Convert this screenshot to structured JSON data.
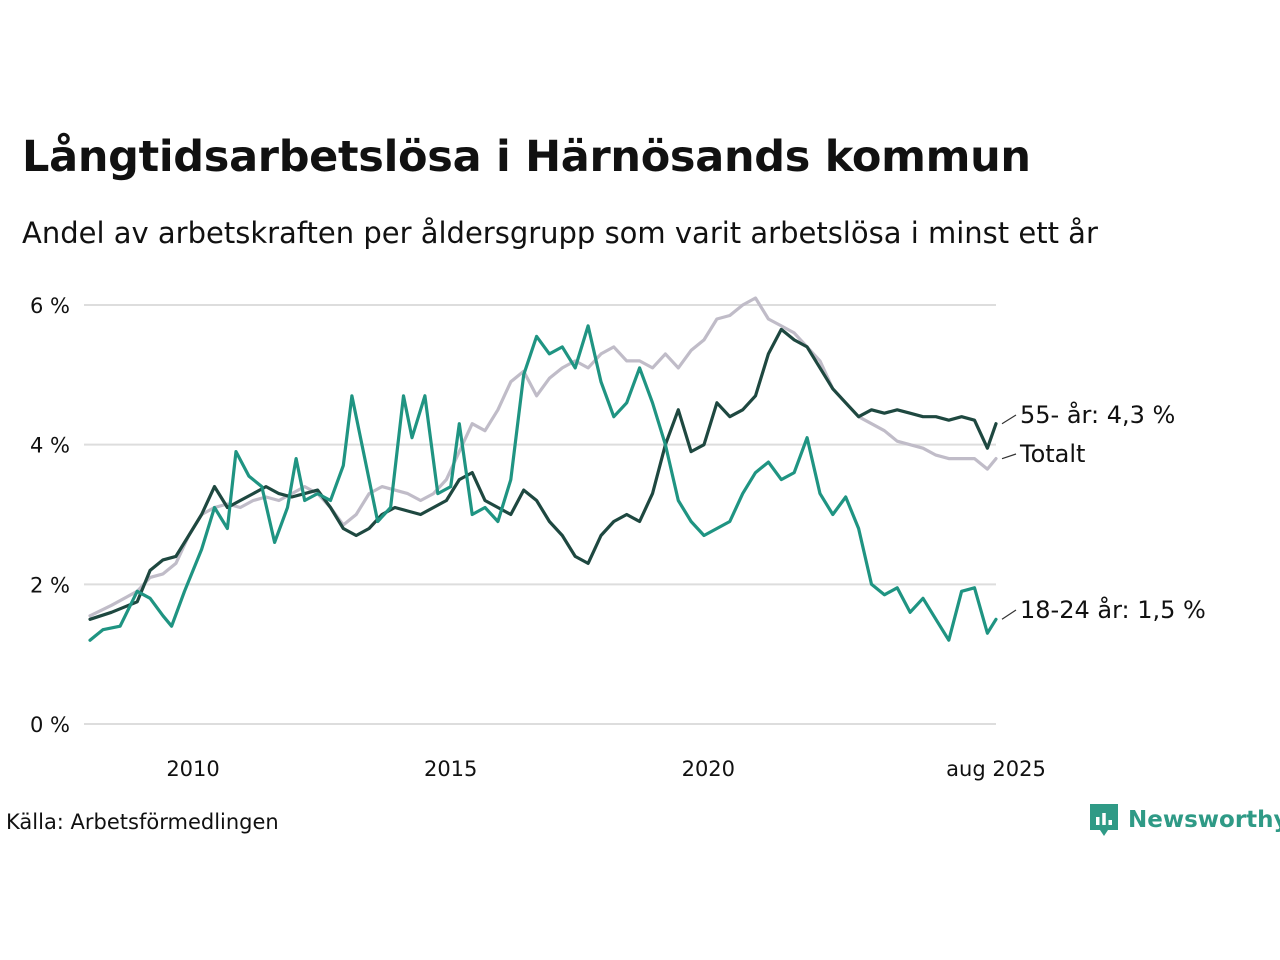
{
  "header": {
    "title": "Långtidsarbetslösa i Härnösands kommun",
    "subtitle": "Andel av arbetskraften per åldersgrupp som varit arbetslösa i minst ett år"
  },
  "footer": {
    "source": "Källa: Arbetsförmedlingen",
    "logo_text": "Newsworthy"
  },
  "colors": {
    "totalt": "#c0bcc8",
    "age_55": "#1e4840",
    "age_18_24": "#1f9482",
    "grid": "#dddddd",
    "brand": "#2f9a86"
  },
  "chart_data": {
    "type": "line",
    "title": "Långtidsarbetslösa i Härnösands kommun",
    "subtitle": "Andel av arbetskraften per åldersgrupp som varit arbetslösa i minst ett år",
    "x_range": [
      "2008-01",
      "2025-08"
    ],
    "x_ticks": [
      {
        "date": "2010-01",
        "label": "2010"
      },
      {
        "date": "2015-01",
        "label": "2015"
      },
      {
        "date": "2020-01",
        "label": "2020"
      },
      {
        "date": "2025-08",
        "label": "aug 2025"
      }
    ],
    "ylim": [
      0,
      6
    ],
    "y_ticks": [
      {
        "value": 0,
        "label": "0 %"
      },
      {
        "value": 2,
        "label": "2 %"
      },
      {
        "value": 4,
        "label": "4 %"
      },
      {
        "value": 6,
        "label": "6 %"
      }
    ],
    "grid": "horizontal",
    "series": [
      {
        "name": "Totalt",
        "end_label": "Totalt",
        "color": "#c0bcc8",
        "points": [
          [
            "2008-01",
            1.55
          ],
          [
            "2008-06",
            1.7
          ],
          [
            "2008-12",
            1.9
          ],
          [
            "2009-03",
            2.1
          ],
          [
            "2009-06",
            2.15
          ],
          [
            "2009-09",
            2.3
          ],
          [
            "2009-12",
            2.7
          ],
          [
            "2010-03",
            3.0
          ],
          [
            "2010-06",
            3.1
          ],
          [
            "2010-09",
            3.15
          ],
          [
            "2010-12",
            3.1
          ],
          [
            "2011-03",
            3.2
          ],
          [
            "2011-06",
            3.25
          ],
          [
            "2011-09",
            3.2
          ],
          [
            "2011-12",
            3.3
          ],
          [
            "2012-03",
            3.4
          ],
          [
            "2012-06",
            3.3
          ],
          [
            "2012-09",
            3.1
          ],
          [
            "2012-12",
            2.85
          ],
          [
            "2013-03",
            3.0
          ],
          [
            "2013-06",
            3.3
          ],
          [
            "2013-09",
            3.4
          ],
          [
            "2013-12",
            3.35
          ],
          [
            "2014-03",
            3.3
          ],
          [
            "2014-06",
            3.2
          ],
          [
            "2014-09",
            3.3
          ],
          [
            "2014-12",
            3.5
          ],
          [
            "2015-03",
            3.9
          ],
          [
            "2015-06",
            4.3
          ],
          [
            "2015-09",
            4.2
          ],
          [
            "2015-12",
            4.5
          ],
          [
            "2016-03",
            4.9
          ],
          [
            "2016-06",
            5.05
          ],
          [
            "2016-09",
            4.7
          ],
          [
            "2016-12",
            4.95
          ],
          [
            "2017-03",
            5.1
          ],
          [
            "2017-06",
            5.2
          ],
          [
            "2017-09",
            5.1
          ],
          [
            "2017-12",
            5.3
          ],
          [
            "2018-03",
            5.4
          ],
          [
            "2018-06",
            5.2
          ],
          [
            "2018-09",
            5.2
          ],
          [
            "2018-12",
            5.1
          ],
          [
            "2019-03",
            5.3
          ],
          [
            "2019-06",
            5.1
          ],
          [
            "2019-09",
            5.35
          ],
          [
            "2019-12",
            5.5
          ],
          [
            "2020-03",
            5.8
          ],
          [
            "2020-06",
            5.85
          ],
          [
            "2020-09",
            6.0
          ],
          [
            "2020-12",
            6.1
          ],
          [
            "2021-03",
            5.8
          ],
          [
            "2021-06",
            5.7
          ],
          [
            "2021-09",
            5.6
          ],
          [
            "2021-12",
            5.4
          ],
          [
            "2022-03",
            5.2
          ],
          [
            "2022-06",
            4.8
          ],
          [
            "2022-09",
            4.6
          ],
          [
            "2022-12",
            4.4
          ],
          [
            "2023-03",
            4.3
          ],
          [
            "2023-06",
            4.2
          ],
          [
            "2023-09",
            4.05
          ],
          [
            "2023-12",
            4.0
          ],
          [
            "2024-03",
            3.95
          ],
          [
            "2024-06",
            3.85
          ],
          [
            "2024-09",
            3.8
          ],
          [
            "2024-12",
            3.8
          ],
          [
            "2025-03",
            3.8
          ],
          [
            "2025-06",
            3.65
          ],
          [
            "2025-08",
            3.8
          ]
        ]
      },
      {
        "name": "55- år",
        "end_label": "55- år: 4,3 %",
        "color": "#1e4840",
        "points": [
          [
            "2008-01",
            1.5
          ],
          [
            "2008-06",
            1.6
          ],
          [
            "2008-12",
            1.75
          ],
          [
            "2009-03",
            2.2
          ],
          [
            "2009-06",
            2.35
          ],
          [
            "2009-09",
            2.4
          ],
          [
            "2009-12",
            2.7
          ],
          [
            "2010-03",
            3.0
          ],
          [
            "2010-06",
            3.4
          ],
          [
            "2010-09",
            3.1
          ],
          [
            "2010-12",
            3.2
          ],
          [
            "2011-03",
            3.3
          ],
          [
            "2011-06",
            3.4
          ],
          [
            "2011-09",
            3.3
          ],
          [
            "2011-12",
            3.25
          ],
          [
            "2012-03",
            3.3
          ],
          [
            "2012-06",
            3.35
          ],
          [
            "2012-09",
            3.1
          ],
          [
            "2012-12",
            2.8
          ],
          [
            "2013-03",
            2.7
          ],
          [
            "2013-06",
            2.8
          ],
          [
            "2013-09",
            3.0
          ],
          [
            "2013-12",
            3.1
          ],
          [
            "2014-03",
            3.05
          ],
          [
            "2014-06",
            3.0
          ],
          [
            "2014-09",
            3.1
          ],
          [
            "2014-12",
            3.2
          ],
          [
            "2015-03",
            3.5
          ],
          [
            "2015-06",
            3.6
          ],
          [
            "2015-09",
            3.2
          ],
          [
            "2015-12",
            3.1
          ],
          [
            "2016-03",
            3.0
          ],
          [
            "2016-06",
            3.35
          ],
          [
            "2016-09",
            3.2
          ],
          [
            "2016-12",
            2.9
          ],
          [
            "2017-03",
            2.7
          ],
          [
            "2017-06",
            2.4
          ],
          [
            "2017-09",
            2.3
          ],
          [
            "2017-12",
            2.7
          ],
          [
            "2018-03",
            2.9
          ],
          [
            "2018-06",
            3.0
          ],
          [
            "2018-09",
            2.9
          ],
          [
            "2018-12",
            3.3
          ],
          [
            "2019-03",
            4.0
          ],
          [
            "2019-06",
            4.5
          ],
          [
            "2019-09",
            3.9
          ],
          [
            "2019-12",
            4.0
          ],
          [
            "2020-03",
            4.6
          ],
          [
            "2020-06",
            4.4
          ],
          [
            "2020-09",
            4.5
          ],
          [
            "2020-12",
            4.7
          ],
          [
            "2021-03",
            5.3
          ],
          [
            "2021-06",
            5.65
          ],
          [
            "2021-09",
            5.5
          ],
          [
            "2021-12",
            5.4
          ],
          [
            "2022-03",
            5.1
          ],
          [
            "2022-06",
            4.8
          ],
          [
            "2022-09",
            4.6
          ],
          [
            "2022-12",
            4.4
          ],
          [
            "2023-03",
            4.5
          ],
          [
            "2023-06",
            4.45
          ],
          [
            "2023-09",
            4.5
          ],
          [
            "2023-12",
            4.45
          ],
          [
            "2024-03",
            4.4
          ],
          [
            "2024-06",
            4.4
          ],
          [
            "2024-09",
            4.35
          ],
          [
            "2024-12",
            4.4
          ],
          [
            "2025-03",
            4.35
          ],
          [
            "2025-06",
            3.95
          ],
          [
            "2025-08",
            4.3
          ]
        ]
      },
      {
        "name": "18-24 år",
        "end_label": "18-24 år: 1,5 %",
        "color": "#1f9482",
        "points": [
          [
            "2008-01",
            1.2
          ],
          [
            "2008-04",
            1.35
          ],
          [
            "2008-08",
            1.4
          ],
          [
            "2008-12",
            1.9
          ],
          [
            "2009-03",
            1.8
          ],
          [
            "2009-06",
            1.55
          ],
          [
            "2009-08",
            1.4
          ],
          [
            "2009-11",
            1.9
          ],
          [
            "2010-03",
            2.5
          ],
          [
            "2010-06",
            3.1
          ],
          [
            "2010-09",
            2.8
          ],
          [
            "2010-11",
            3.9
          ],
          [
            "2011-02",
            3.55
          ],
          [
            "2011-05",
            3.4
          ],
          [
            "2011-08",
            2.6
          ],
          [
            "2011-11",
            3.1
          ],
          [
            "2012-01",
            3.8
          ],
          [
            "2012-03",
            3.2
          ],
          [
            "2012-06",
            3.3
          ],
          [
            "2012-09",
            3.2
          ],
          [
            "2012-12",
            3.7
          ],
          [
            "2013-02",
            4.7
          ],
          [
            "2013-05",
            3.8
          ],
          [
            "2013-08",
            2.9
          ],
          [
            "2013-11",
            3.1
          ],
          [
            "2014-02",
            4.7
          ],
          [
            "2014-04",
            4.1
          ],
          [
            "2014-07",
            4.7
          ],
          [
            "2014-10",
            3.3
          ],
          [
            "2015-01",
            3.4
          ],
          [
            "2015-03",
            4.3
          ],
          [
            "2015-06",
            3.0
          ],
          [
            "2015-09",
            3.1
          ],
          [
            "2015-12",
            2.9
          ],
          [
            "2016-03",
            3.5
          ],
          [
            "2016-06",
            5.0
          ],
          [
            "2016-09",
            5.55
          ],
          [
            "2016-12",
            5.3
          ],
          [
            "2017-03",
            5.4
          ],
          [
            "2017-06",
            5.1
          ],
          [
            "2017-09",
            5.7
          ],
          [
            "2017-12",
            4.9
          ],
          [
            "2018-03",
            4.4
          ],
          [
            "2018-06",
            4.6
          ],
          [
            "2018-09",
            5.1
          ],
          [
            "2018-12",
            4.6
          ],
          [
            "2019-03",
            4.0
          ],
          [
            "2019-06",
            3.2
          ],
          [
            "2019-09",
            2.9
          ],
          [
            "2019-12",
            2.7
          ],
          [
            "2020-03",
            2.8
          ],
          [
            "2020-06",
            2.9
          ],
          [
            "2020-09",
            3.3
          ],
          [
            "2020-12",
            3.6
          ],
          [
            "2021-03",
            3.75
          ],
          [
            "2021-06",
            3.5
          ],
          [
            "2021-09",
            3.6
          ],
          [
            "2021-12",
            4.1
          ],
          [
            "2022-03",
            3.3
          ],
          [
            "2022-06",
            3.0
          ],
          [
            "2022-09",
            3.25
          ],
          [
            "2022-12",
            2.8
          ],
          [
            "2023-03",
            2.0
          ],
          [
            "2023-06",
            1.85
          ],
          [
            "2023-09",
            1.95
          ],
          [
            "2023-12",
            1.6
          ],
          [
            "2024-03",
            1.8
          ],
          [
            "2024-06",
            1.5
          ],
          [
            "2024-09",
            1.2
          ],
          [
            "2024-12",
            1.9
          ],
          [
            "2025-03",
            1.95
          ],
          [
            "2025-06",
            1.3
          ],
          [
            "2025-08",
            1.5
          ]
        ]
      }
    ]
  }
}
